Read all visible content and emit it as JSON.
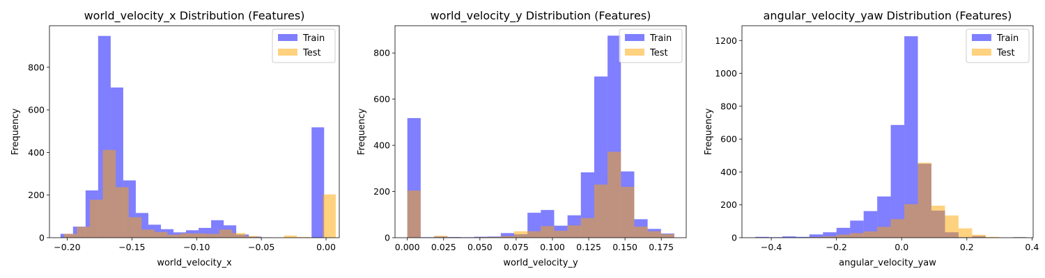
{
  "colors": {
    "train": "#0000ff",
    "test": "#ffa500",
    "overlap": "#bf8080"
  },
  "chart_data": [
    {
      "type": "histogram",
      "title": "world_velocity_x Distribution (Features)",
      "xlabel": "world_velocity_x",
      "ylabel": "Frequency",
      "xlim": [
        -0.2137,
        0.0102
      ],
      "ylim": [
        0,
        995
      ],
      "xticks": [
        -0.2,
        -0.15,
        -0.1,
        -0.05,
        0.0
      ],
      "xtick_labels": [
        "−0.20",
        "−0.15",
        "−0.10",
        "−0.05",
        "0.00"
      ],
      "yticks": [
        0,
        200,
        400,
        600,
        800
      ],
      "legend": {
        "position": "upper right",
        "labels": [
          "Train",
          "Test"
        ]
      },
      "series": [
        {
          "name": "Train",
          "bins": [
            -0.2052,
            -0.1955,
            -0.1858,
            -0.1761,
            -0.1664,
            -0.1567,
            -0.147,
            -0.1373,
            -0.1276,
            -0.1179,
            -0.1082,
            -0.0985,
            -0.0888,
            -0.0791,
            -0.0694,
            -0.0597,
            -0.05,
            -0.0403,
            -0.0306,
            -0.0209,
            -0.0112,
            -0.0015,
            0.0082
          ],
          "counts": [
            18,
            52,
            222,
            947,
            705,
            269,
            116,
            61,
            40,
            25,
            35,
            46,
            82,
            58,
            15,
            5,
            0,
            0,
            0,
            0,
            518,
            0
          ]
        },
        {
          "name": "Test",
          "bins": [
            -0.2025,
            -0.1925,
            -0.1825,
            -0.1725,
            -0.1625,
            -0.1525,
            -0.1425,
            -0.1325,
            -0.1225,
            -0.1125,
            -0.1025,
            -0.0925,
            -0.0825,
            -0.0725,
            -0.0625,
            -0.0525,
            -0.0425,
            -0.0325,
            -0.0225,
            -0.0125,
            -0.0025,
            0.0075
          ],
          "counts": [
            18,
            51,
            178,
            412,
            237,
            96,
            38,
            27,
            14,
            20,
            20,
            18,
            38,
            22,
            8,
            2,
            0,
            10,
            3,
            0,
            203
          ]
        }
      ]
    },
    {
      "type": "histogram",
      "title": "world_velocity_y Distribution (Features)",
      "xlabel": "world_velocity_y",
      "ylabel": "Frequency",
      "xlim": [
        -0.0085,
        0.1922
      ],
      "ylim": [
        0,
        918
      ],
      "xticks": [
        0.0,
        0.025,
        0.05,
        0.075,
        0.1,
        0.125,
        0.15,
        0.175
      ],
      "xtick_labels": [
        "0.000",
        "0.025",
        "0.050",
        "0.075",
        "0.100",
        "0.125",
        "0.150",
        "0.175"
      ],
      "yticks": [
        0,
        200,
        400,
        600,
        800
      ],
      "legend": {
        "position": "upper right",
        "labels": [
          "Train",
          "Test"
        ]
      },
      "series": [
        {
          "name": "Train",
          "bins": [
            0.0,
            0.0092,
            0.0184,
            0.0276,
            0.0368,
            0.046,
            0.0552,
            0.0644,
            0.0736,
            0.0828,
            0.092,
            0.1012,
            0.1104,
            0.1196,
            0.1288,
            0.138,
            0.1472,
            0.1564,
            0.1656,
            0.1748,
            0.184
          ],
          "counts": [
            518,
            2,
            5,
            3,
            2,
            4,
            5,
            20,
            15,
            108,
            120,
            52,
            97,
            283,
            698,
            875,
            287,
            80,
            38,
            18
          ]
        },
        {
          "name": "Test",
          "bins": [
            0.0,
            0.0092,
            0.0184,
            0.0276,
            0.0368,
            0.046,
            0.0552,
            0.0644,
            0.0736,
            0.0828,
            0.092,
            0.1012,
            0.1104,
            0.1196,
            0.1288,
            0.138,
            0.1472,
            0.1564,
            0.1656,
            0.1748,
            0.184
          ],
          "counts": [
            204,
            0,
            8,
            2,
            0,
            2,
            3,
            7,
            28,
            28,
            50,
            30,
            53,
            85,
            230,
            372,
            220,
            48,
            28,
            15
          ]
        }
      ]
    },
    {
      "type": "histogram",
      "title": "angular_velocity_yaw Distribution (Features)",
      "xlabel": "angular_velocity_yaw",
      "ylabel": "Frequency",
      "xlim": [
        -0.49,
        0.4035
      ],
      "ylim": [
        0,
        1290
      ],
      "xticks": [
        -0.4,
        -0.2,
        0.0,
        0.2,
        0.4
      ],
      "xtick_labels": [
        "−0.4",
        "−0.2",
        "0.0",
        "0.2",
        "0.4"
      ],
      "yticks": [
        0,
        200,
        400,
        600,
        800,
        1000,
        1200
      ],
      "legend": {
        "position": "upper right",
        "labels": [
          "Train",
          "Test"
        ]
      },
      "series": [
        {
          "name": "Train",
          "bins": [
            -0.4494,
            -0.4078,
            -0.3662,
            -0.3246,
            -0.283,
            -0.2414,
            -0.1998,
            -0.1582,
            -0.1166,
            -0.075,
            -0.0334,
            0.0082,
            0.0498,
            0.0914,
            0.133,
            0.1746,
            0.2162,
            0.2578,
            0.2994,
            0.341,
            0.3826
          ],
          "counts": [
            5,
            3,
            8,
            5,
            20,
            33,
            60,
            104,
            162,
            251,
            686,
            1226,
            450,
            165,
            33,
            3,
            10,
            0,
            0,
            3
          ]
        },
        {
          "name": "Test",
          "bins": [
            -0.4494,
            -0.4078,
            -0.3662,
            -0.3246,
            -0.283,
            -0.2414,
            -0.1998,
            -0.1582,
            -0.1166,
            -0.075,
            -0.0334,
            0.0082,
            0.0498,
            0.0914,
            0.133,
            0.1746,
            0.2162,
            0.2578,
            0.2994,
            0.341,
            0.3826
          ],
          "counts": [
            0,
            0,
            0,
            0,
            4,
            8,
            18,
            28,
            38,
            66,
            113,
            204,
            456,
            195,
            135,
            57,
            18,
            5,
            0,
            3
          ]
        }
      ]
    }
  ]
}
